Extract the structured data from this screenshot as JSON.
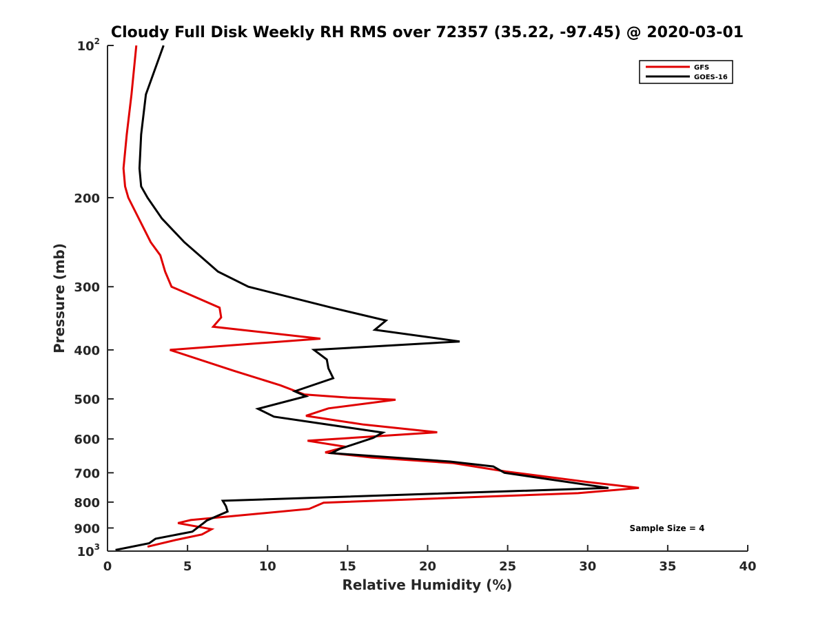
{
  "chart_data": {
    "type": "line",
    "title": "Cloudy Full Disk Weekly RH RMS over 72357 (35.22, -97.45) @ 2020-03-01",
    "xlabel": "Relative Humidity (%)",
    "ylabel": "Pressure (mb)",
    "xlim": [
      0,
      40
    ],
    "ylim": [
      100,
      1000
    ],
    "yscale": "log",
    "y_reversed": true,
    "x_ticks": [
      "0",
      "5",
      "10",
      "15",
      "20",
      "25",
      "30",
      "35",
      "40"
    ],
    "y_ticks": [
      {
        "value": 100,
        "base": "10",
        "exp": "2"
      },
      {
        "value": 200,
        "label": "200"
      },
      {
        "value": 300,
        "label": "300"
      },
      {
        "value": 400,
        "label": "400"
      },
      {
        "value": 500,
        "label": "500"
      },
      {
        "value": 600,
        "label": "600"
      },
      {
        "value": 700,
        "label": "700"
      },
      {
        "value": 800,
        "label": "800"
      },
      {
        "value": 900,
        "label": "900"
      },
      {
        "value": 1000,
        "base": "10",
        "exp": "3"
      }
    ],
    "legend_position": "top-right",
    "annotation": "Sample Size = 4",
    "series": [
      {
        "name": "GFS",
        "color": "#e00000",
        "points": [
          [
            1.8,
            100
          ],
          [
            1.5,
            125
          ],
          [
            1.2,
            150
          ],
          [
            1.0,
            175
          ],
          [
            1.1,
            190
          ],
          [
            1.3,
            200
          ],
          [
            2.7,
            245
          ],
          [
            3.3,
            260
          ],
          [
            3.6,
            280
          ],
          [
            4.0,
            300
          ],
          [
            7.0,
            330
          ],
          [
            7.1,
            345
          ],
          [
            6.6,
            360
          ],
          [
            13.3,
            380
          ],
          [
            3.9,
            400
          ],
          [
            7.9,
            440
          ],
          [
            10.8,
            470
          ],
          [
            12.3,
            490
          ],
          [
            15.0,
            497
          ],
          [
            18.0,
            502
          ],
          [
            13.8,
            522
          ],
          [
            12.4,
            540
          ],
          [
            16.0,
            562
          ],
          [
            20.6,
            582
          ],
          [
            12.5,
            605
          ],
          [
            14.9,
            622
          ],
          [
            13.6,
            638
          ],
          [
            16.5,
            653
          ],
          [
            21.6,
            670
          ],
          [
            24.9,
            696
          ],
          [
            30.0,
            730
          ],
          [
            33.2,
            750
          ],
          [
            29.4,
            768
          ],
          [
            13.5,
            802
          ],
          [
            12.6,
            825
          ],
          [
            5.2,
            868
          ],
          [
            4.4,
            880
          ],
          [
            6.5,
            905
          ],
          [
            5.9,
            927
          ],
          [
            4.3,
            950
          ],
          [
            2.5,
            980
          ]
        ]
      },
      {
        "name": "GOES-16",
        "color": "#000000",
        "points": [
          [
            3.5,
            100
          ],
          [
            2.4,
            125
          ],
          [
            2.1,
            150
          ],
          [
            2.0,
            175
          ],
          [
            2.1,
            190
          ],
          [
            2.5,
            200
          ],
          [
            3.4,
            220
          ],
          [
            4.8,
            245
          ],
          [
            6.9,
            280
          ],
          [
            8.8,
            300
          ],
          [
            14.0,
            330
          ],
          [
            17.4,
            350
          ],
          [
            16.7,
            365
          ],
          [
            22.0,
            385
          ],
          [
            12.9,
            400
          ],
          [
            13.7,
            418
          ],
          [
            13.8,
            435
          ],
          [
            14.1,
            455
          ],
          [
            11.7,
            483
          ],
          [
            12.4,
            494
          ],
          [
            9.4,
            523
          ],
          [
            10.4,
            542
          ],
          [
            17.2,
            583
          ],
          [
            16.6,
            597
          ],
          [
            14.5,
            628
          ],
          [
            14.0,
            640
          ],
          [
            21.4,
            665
          ],
          [
            24.1,
            680
          ],
          [
            24.8,
            700
          ],
          [
            31.3,
            750
          ],
          [
            7.2,
            795
          ],
          [
            7.4,
            815
          ],
          [
            7.5,
            835
          ],
          [
            6.2,
            870
          ],
          [
            6.0,
            880
          ],
          [
            5.9,
            885
          ],
          [
            5.3,
            915
          ],
          [
            3.0,
            945
          ],
          [
            2.6,
            965
          ],
          [
            0.5,
            995
          ]
        ]
      }
    ]
  }
}
